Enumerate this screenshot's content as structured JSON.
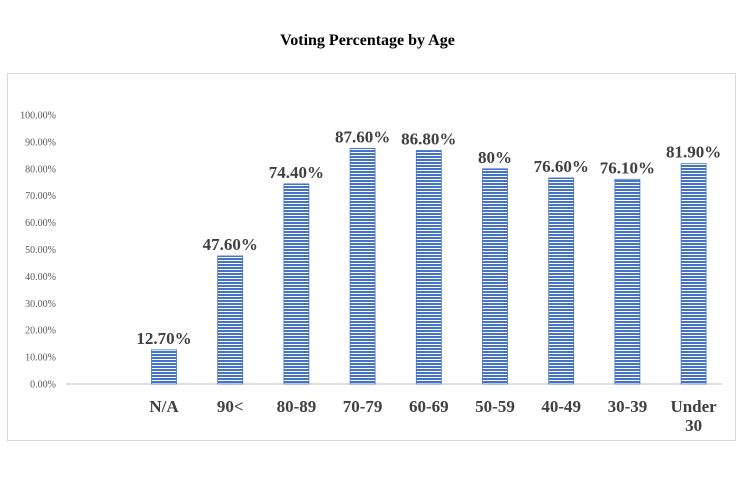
{
  "chart_data": {
    "type": "bar",
    "title": "Voting Percentage by Age",
    "categories": [
      "N/A",
      "90<",
      "80-89",
      "70-79",
      "60-69",
      "50-59",
      "40-49",
      "30-39",
      "Under 30"
    ],
    "values": [
      12.7,
      47.6,
      74.4,
      87.6,
      86.8,
      80,
      76.6,
      76.1,
      81.9
    ],
    "data_labels": [
      "12.70%",
      "47.60%",
      "74.40%",
      "87.60%",
      "86.80%",
      "80%",
      "76.60%",
      "76.10%",
      "81.90%"
    ],
    "y_ticks": [
      "0.00%",
      "10.00%",
      "20.00%",
      "30.00%",
      "40.00%",
      "50.00%",
      "60.00%",
      "70.00%",
      "80.00%",
      "90.00%",
      "100.00%"
    ],
    "ylim": [
      0,
      100
    ],
    "xlabel": "",
    "ylabel": "",
    "grid": false,
    "bar_color": "#4472c4"
  }
}
